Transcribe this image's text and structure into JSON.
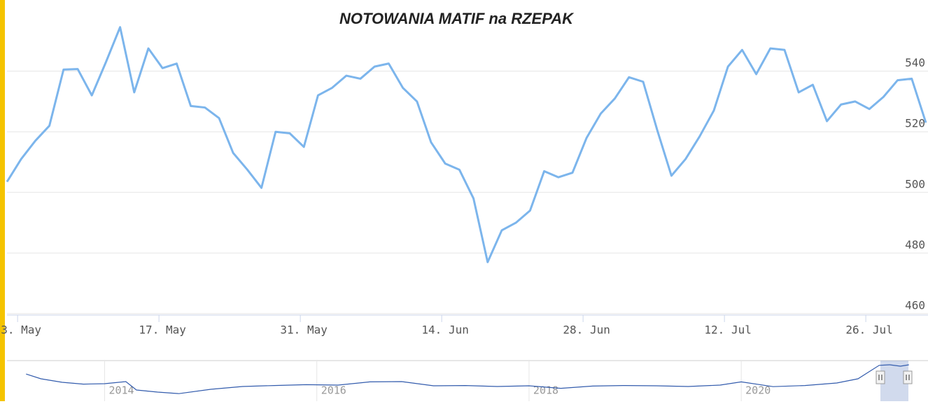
{
  "chart_data": {
    "type": "line",
    "title": "NOTOWANIA MATIF na RZEPAK",
    "series": [
      {
        "color": "#7cb5ec",
        "values": [
          503.5,
          511,
          517,
          522,
          540.5,
          540.7,
          532,
          543,
          554.5,
          533,
          547.5,
          541,
          542.5,
          528.5,
          528,
          524.5,
          513,
          507.5,
          501.5,
          520,
          519.5,
          515,
          532,
          534.5,
          538.5,
          537.5,
          541.5,
          542.5,
          534.5,
          530,
          516.5,
          509.5,
          507.5,
          498,
          477,
          487.5,
          490,
          494,
          507,
          505,
          506.5,
          518,
          526,
          531,
          538,
          536.5,
          520.5,
          505.5,
          511,
          518.5,
          527,
          541.5,
          547,
          539,
          547.5,
          547,
          533,
          535.5,
          523.5,
          529,
          530,
          527.5,
          531.5,
          537,
          537.5,
          523
        ]
      }
    ],
    "xlim": [
      0,
      65.15
    ],
    "xticks": [
      {
        "value": 0.75,
        "label": "3. May"
      },
      {
        "value": 10.75,
        "label": "17. May"
      },
      {
        "value": 20.75,
        "label": "31. May"
      },
      {
        "value": 30.75,
        "label": "14. Jun"
      },
      {
        "value": 40.75,
        "label": "28. Jun"
      },
      {
        "value": 50.75,
        "label": "12. Jul"
      },
      {
        "value": 60.75,
        "label": "26. Jul"
      }
    ],
    "ylim": [
      460,
      560
    ],
    "yticks": [
      460,
      480,
      500,
      520,
      540
    ],
    "grid": true,
    "navigator": {
      "color": "#335cad",
      "x": [
        2013.26,
        2013.4,
        2013.6,
        2013.8,
        2014.0,
        2014.2,
        2014.3,
        2014.5,
        2014.7,
        2015.0,
        2015.3,
        2015.6,
        2015.9,
        2016.2,
        2016.5,
        2016.8,
        2017.1,
        2017.4,
        2017.7,
        2018.0,
        2018.3,
        2018.6,
        2018.9,
        2019.2,
        2019.5,
        2019.8,
        2020.0,
        2020.3,
        2020.6,
        2020.9,
        2021.1,
        2021.2,
        2021.3,
        2021.4,
        2021.5,
        2021.58
      ],
      "values": [
        474,
        440,
        415,
        402,
        405,
        420,
        360,
        345,
        334,
        365,
        385,
        392,
        398,
        395,
        418,
        420,
        390,
        392,
        385,
        390,
        372,
        388,
        392,
        390,
        385,
        395,
        418,
        384,
        392,
        410,
        440,
        488,
        536,
        540,
        530,
        540
      ],
      "xlim": [
        2013.08,
        2021.76
      ],
      "xticks": [
        2014,
        2016,
        2018,
        2020
      ],
      "ylim": [
        320,
        560
      ]
    }
  }
}
